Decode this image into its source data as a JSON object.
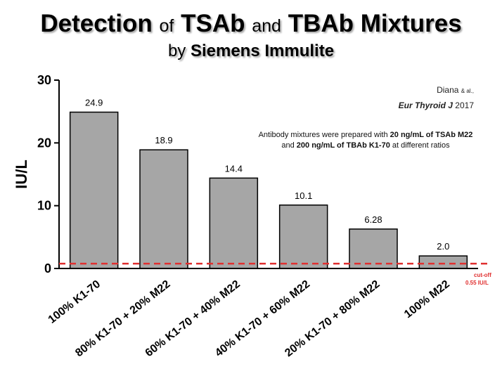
{
  "title": {
    "part1": "Detection",
    "of1": "of",
    "part2": "TSAb",
    "and1": "and",
    "part3": "TBAb Mixtures"
  },
  "subtitle": {
    "by": "by",
    "brand": "Siemens Immulite"
  },
  "reference": {
    "author": "Diana",
    "etal": "& al.,",
    "journal": "Eur Thyroid J",
    "year": "2017"
  },
  "note": {
    "t1": "Antibody mixtures were prepared with ",
    "b1": "20 ng/mL of TSAb M22",
    "t2": " and ",
    "b2": "200 ng/mL of TBAb K1-70",
    "t3": " at different ratios"
  },
  "cutoff": {
    "line1": "cut-off",
    "line2": "0.55 IU/L",
    "value": 0.55,
    "color": "#e03030"
  },
  "chart_data": {
    "type": "bar",
    "categories": [
      "100% K1-70",
      "80% K1-70 + 20% M22",
      "60% K1-70 + 40% M22",
      "40% K1-70 + 60% M22",
      "20% K1-70 + 80% M22",
      "100% M22"
    ],
    "values": [
      24.9,
      18.9,
      14.4,
      10.1,
      6.28,
      2.0
    ],
    "value_labels": [
      "24.9",
      "18.9",
      "14.4",
      "10.1",
      "6.28",
      "2.0"
    ],
    "ylabel": "IU/L",
    "ylim": [
      0,
      30
    ],
    "yticks": [
      "0",
      "10",
      "20",
      "30"
    ],
    "bar_color": "#a6a6a6",
    "grid": false
  }
}
